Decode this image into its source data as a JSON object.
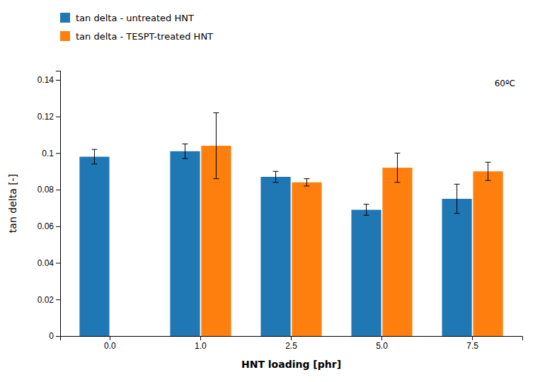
{
  "chart_data": {
    "type": "bar",
    "categories": [
      "0.0",
      "1.0",
      "2.5",
      "5.0",
      "7.5"
    ],
    "series": [
      {
        "name": "tan delta - untreated HNT",
        "values": [
          0.098,
          0.101,
          0.087,
          0.069,
          0.075
        ],
        "errors": [
          0.004,
          0.004,
          0.003,
          0.003,
          0.008
        ]
      },
      {
        "name": "tan delta - TESPT-treated HNT",
        "values": [
          null,
          0.104,
          0.084,
          0.092,
          0.09
        ],
        "errors": [
          null,
          0.018,
          0.002,
          0.008,
          0.005
        ]
      }
    ],
    "xlabel": "HNT loading [phr]",
    "ylabel": "tan delta [-]",
    "annotation": "60ºC",
    "ylim": [
      0,
      0.145
    ],
    "yticks": [
      0,
      0.02,
      0.04,
      0.06,
      0.08,
      0.1,
      0.12,
      0.14
    ],
    "grid": false
  }
}
